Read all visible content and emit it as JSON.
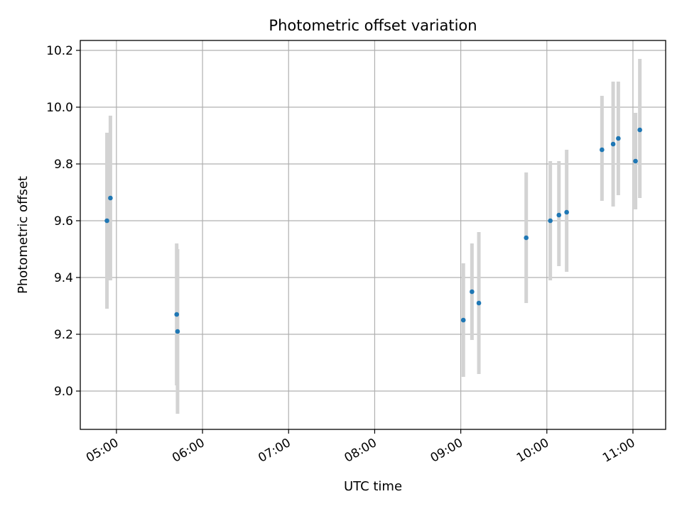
{
  "chart_data": {
    "type": "scatter",
    "title": "Photometric offset variation",
    "xlabel": "UTC time",
    "ylabel": "Photometric offset",
    "x_unit": "UTC time (hours, decimal)",
    "xlim": [
      4.58,
      11.38
    ],
    "ylim": [
      8.865,
      10.235
    ],
    "grid": true,
    "x_ticks": [
      5,
      6,
      7,
      8,
      9,
      10,
      11
    ],
    "x_tick_labels": [
      "05:00",
      "06:00",
      "07:00",
      "08:00",
      "09:00",
      "10:00",
      "11:00"
    ],
    "y_ticks": [
      9.0,
      9.2,
      9.4,
      9.6,
      9.8,
      10.0,
      10.2
    ],
    "y_tick_labels": [
      "9.0",
      "9.2",
      "9.4",
      "9.6",
      "9.8",
      "10.0",
      "10.2"
    ],
    "colors": {
      "point": "#1f77b4",
      "error_bar": "#d3d3d3",
      "grid": "#b0b0b0"
    },
    "points": [
      {
        "x": 4.89,
        "y": 9.6,
        "ylow": 9.29,
        "yhigh": 9.91
      },
      {
        "x": 4.93,
        "y": 9.68,
        "ylow": 9.39,
        "yhigh": 9.97
      },
      {
        "x": 5.7,
        "y": 9.27,
        "ylow": 9.02,
        "yhigh": 9.52
      },
      {
        "x": 5.71,
        "y": 9.21,
        "ylow": 8.92,
        "yhigh": 9.5
      },
      {
        "x": 9.03,
        "y": 9.25,
        "ylow": 9.05,
        "yhigh": 9.45
      },
      {
        "x": 9.13,
        "y": 9.35,
        "ylow": 9.18,
        "yhigh": 9.52
      },
      {
        "x": 9.21,
        "y": 9.31,
        "ylow": 9.06,
        "yhigh": 9.56
      },
      {
        "x": 9.76,
        "y": 9.54,
        "ylow": 9.31,
        "yhigh": 9.77
      },
      {
        "x": 10.04,
        "y": 9.6,
        "ylow": 9.39,
        "yhigh": 9.81
      },
      {
        "x": 10.14,
        "y": 9.62,
        "ylow": 9.44,
        "yhigh": 9.81
      },
      {
        "x": 10.23,
        "y": 9.63,
        "ylow": 9.42,
        "yhigh": 9.85
      },
      {
        "x": 10.64,
        "y": 9.85,
        "ylow": 9.67,
        "yhigh": 10.04
      },
      {
        "x": 10.77,
        "y": 9.87,
        "ylow": 9.65,
        "yhigh": 10.09
      },
      {
        "x": 10.83,
        "y": 9.89,
        "ylow": 9.69,
        "yhigh": 10.09
      },
      {
        "x": 11.03,
        "y": 9.81,
        "ylow": 9.64,
        "yhigh": 9.98
      },
      {
        "x": 11.08,
        "y": 9.92,
        "ylow": 9.68,
        "yhigh": 10.17
      }
    ]
  }
}
